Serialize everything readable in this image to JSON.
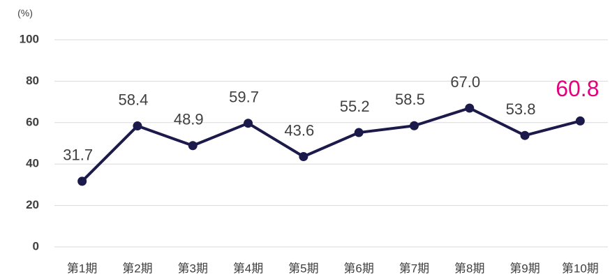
{
  "chart_data": {
    "type": "line",
    "y_label": "(%)",
    "categories": [
      "第1期",
      "第2期",
      "第3期",
      "第4期",
      "第5期",
      "第6期",
      "第7期",
      "第8期",
      "第9期",
      "第10期"
    ],
    "series": [
      {
        "name": null,
        "color": "#1c1a4a",
        "values": [
          31.7,
          58.4,
          48.9,
          59.7,
          43.6,
          55.2,
          58.5,
          67.0,
          53.8,
          60.8
        ],
        "value_labels": [
          "31.7",
          "58.4",
          "48.9",
          "59.7",
          "43.6",
          "55.2",
          "58.5",
          "67.0",
          "53.8",
          "60.8"
        ],
        "value_label_colors": [
          "#404040",
          "#404040",
          "#404040",
          "#404040",
          "#404040",
          "#404040",
          "#404040",
          "#404040",
          "#404040",
          "#e4007f"
        ]
      }
    ],
    "ylim": [
      0,
      100
    ],
    "yticks": [
      0,
      20,
      40,
      60,
      80,
      100
    ],
    "grid": true
  }
}
